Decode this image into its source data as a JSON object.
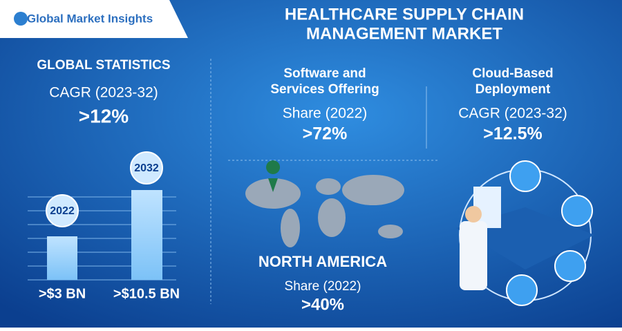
{
  "logo": "Global Market Insights",
  "title": [
    "HEALTHCARE SUPPLY CHAIN",
    "MANAGEMENT MARKET"
  ],
  "global_statistics": {
    "heading": "GLOBAL STATISTICS",
    "metric": "CAGR (2023-32)",
    "value": ">12%",
    "bars": [
      {
        "year": "2022",
        "label": ">$3 BN"
      },
      {
        "year": "2032",
        "label": ">$10.5 BN"
      }
    ]
  },
  "software": {
    "heading": [
      "Software and",
      "Services Offering"
    ],
    "metric": "Share (2022)",
    "value": ">72%"
  },
  "cloud": {
    "heading": [
      "Cloud-Based",
      "Deployment"
    ],
    "metric": "CAGR (2023-32)",
    "value": ">12.5%"
  },
  "region": {
    "heading": "NORTH AMERICA",
    "metric": "Share (2022)",
    "value": ">40%"
  }
}
